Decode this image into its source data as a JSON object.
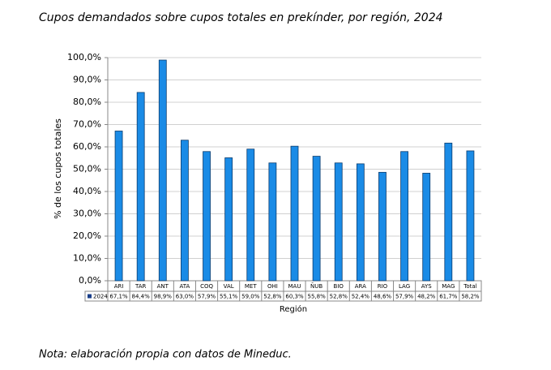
{
  "chart_data": {
    "type": "bar",
    "title": "Cupos demandados sobre cupos totales en prekínder, por región, 2024",
    "y_label": "% de los cupos totales",
    "x_label": "Región",
    "note": "Nota: elaboración propia con datos de Mineduc.",
    "categories": [
      "ARI",
      "TAR",
      "ANT",
      "ATA",
      "COQ",
      "VAL",
      "MET",
      "OHI",
      "MAU",
      "ÑUB",
      "BIO",
      "ARA",
      "RIO",
      "LAG",
      "AYS",
      "MAG",
      "Total"
    ],
    "series": [
      {
        "name": "2024",
        "color": "#1a8be6",
        "values": [
          67.1,
          84.4,
          98.9,
          63.0,
          57.9,
          55.1,
          59.0,
          52.8,
          60.3,
          55.8,
          52.8,
          52.4,
          48.6,
          57.9,
          48.2,
          61.7,
          58.2
        ],
        "value_labels": [
          "67,1%",
          "84,4%",
          "98,9%",
          "63,0%",
          "57,9%",
          "55,1%",
          "59,0%",
          "52,8%",
          "60,3%",
          "55,8%",
          "52,8%",
          "52,4%",
          "48,6%",
          "57,9%",
          "48,2%",
          "61,7%",
          "58,2%"
        ]
      }
    ],
    "ylim": [
      0,
      100
    ],
    "yticks": [
      {
        "value": 0,
        "label": "0,0%"
      },
      {
        "value": 10,
        "label": "10,0%"
      },
      {
        "value": 20,
        "label": "20,0%"
      },
      {
        "value": 30,
        "label": "30,0%"
      },
      {
        "value": 40,
        "label": "40,0%"
      },
      {
        "value": 50,
        "label": "50,0%"
      },
      {
        "value": 60,
        "label": "60,0%"
      },
      {
        "value": 70,
        "label": "70,0%"
      },
      {
        "value": 80,
        "label": "80,0%"
      },
      {
        "value": 90,
        "label": "90,0%"
      },
      {
        "value": 100,
        "label": "100,0%"
      }
    ],
    "grid": true
  }
}
